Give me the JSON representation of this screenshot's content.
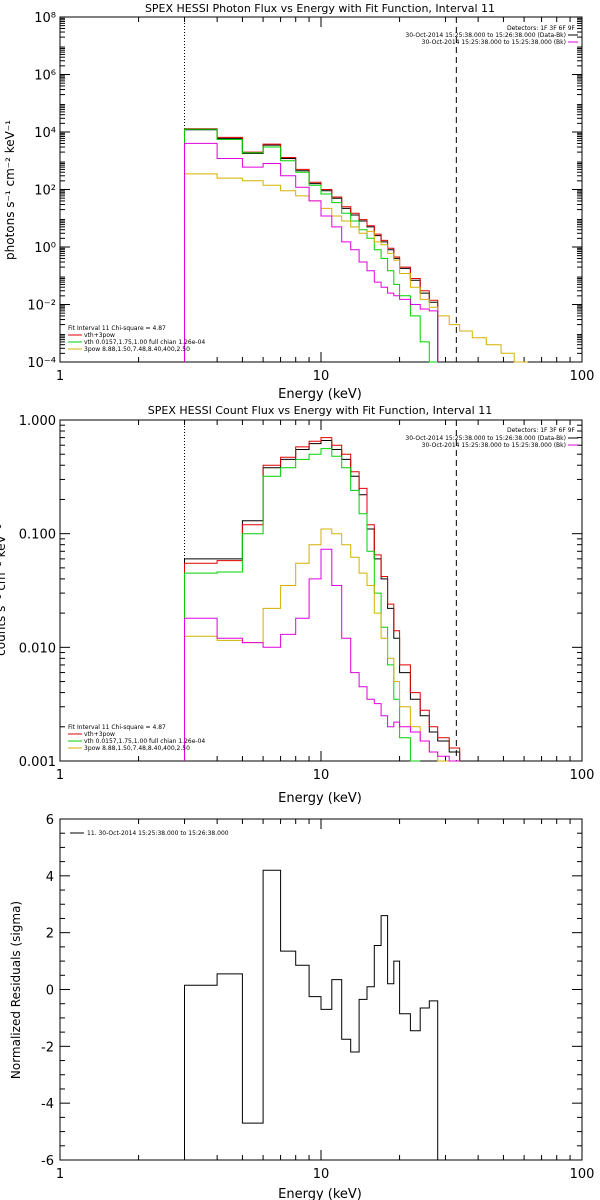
{
  "colors": {
    "data": "#000000",
    "total": "#e00000",
    "thermal": "#00d000",
    "power": "#d4b000",
    "bk": "#e000e0"
  },
  "chart_data": [
    {
      "type": "line",
      "title": "SPEX HESSI Photon Flux vs Energy with Fit Function, Interval 11",
      "xlabel": "Energy (keV)",
      "ylabel": "photons s⁻¹ cm⁻² keV⁻¹",
      "xscale": "log",
      "yscale": "log",
      "xlim": [
        1,
        100
      ],
      "ylim": [
        0.0001,
        100000000
      ],
      "x_ticks": [
        "1",
        "10",
        "100"
      ],
      "y_ticks": [
        "10⁻⁴",
        "10⁻²",
        "10⁰",
        "10²",
        "10⁴",
        "10⁶",
        "10⁸"
      ],
      "vlines": [
        {
          "x": 3,
          "style": "dotted"
        },
        {
          "x": 33,
          "style": "dashed"
        }
      ],
      "legend_top": {
        "detectors": "Detectors: 1F 3F 6F 9F",
        "rows": [
          {
            "label": "30-Oct-2014 15:25:38.000 to 15:26:38.000 (Data-Bk)",
            "color": "#000000"
          },
          {
            "label": "30-Oct-2014 15:25:38.000 to 15:25:38.000 (Bk)",
            "color": "#e000e0"
          }
        ]
      },
      "legend_bottom": [
        {
          "label": "Fit Interval 11    Chi-square = 4.87",
          "color": null
        },
        {
          "label": "vth+3pow",
          "color": "#e00000"
        },
        {
          "label": "vth 0.0157,1.75,1.00  full chian 1.26e-04",
          "color": "#00d000"
        },
        {
          "label": "3pow 8.88,1.50,7.48,8.40,400,2.50",
          "color": "#d4b000"
        }
      ],
      "edges": [
        3,
        4,
        5,
        6,
        7,
        8,
        9,
        10,
        11,
        12,
        13,
        14,
        15,
        16,
        17,
        18,
        19,
        20,
        22,
        24,
        26,
        28,
        31,
        34,
        38,
        43,
        49,
        55,
        62,
        70
      ],
      "series": [
        {
          "name": "data",
          "color": "#000000",
          "values": [
            12000,
            6000,
            1800,
            3500,
            1200,
            450,
            160,
            90,
            50,
            22,
            13,
            8,
            5,
            2.5,
            1.5,
            0.8,
            0.4,
            0.18,
            0.07,
            0.025,
            0.012
          ]
        },
        {
          "name": "vth+3pow",
          "color": "#e00000",
          "values": [
            13000,
            6500,
            2000,
            3800,
            1300,
            500,
            180,
            100,
            55,
            25,
            15,
            9,
            5.5,
            2.8,
            1.7,
            0.9,
            0.45,
            0.2,
            0.08,
            0.03,
            0.014
          ]
        },
        {
          "name": "vth",
          "color": "#00d000",
          "values": [
            12500,
            5500,
            1900,
            3000,
            1000,
            400,
            140,
            70,
            35,
            15,
            8,
            4,
            2,
            0.8,
            0.4,
            0.15,
            0.05,
            0.02,
            0.004,
            0.0005,
            0.0001
          ]
        },
        {
          "name": "3pow",
          "color": "#d4b000",
          "values": [
            350,
            250,
            200,
            140,
            90,
            60,
            40,
            22,
            12,
            8,
            5,
            3,
            3.5,
            1.5,
            1.2,
            0.6,
            0.35,
            0.12,
            0.04,
            0.015,
            0.008,
            0.004,
            0.002,
            0.0012,
            0.0007,
            0.0004,
            0.0002,
            0.0001
          ]
        },
        {
          "name": "Bk",
          "color": "#e000e0",
          "values": [
            4000,
            1200,
            600,
            800,
            300,
            120,
            40,
            12,
            5,
            1.5,
            0.8,
            0.3,
            0.15,
            0.06,
            0.04,
            0.025,
            0.02,
            0.015,
            0.01,
            0.007,
            0.006
          ]
        }
      ]
    },
    {
      "type": "line",
      "title": "SPEX HESSI Count Flux vs Energy with Fit Function, Interval 11",
      "xlabel": "Energy (keV)",
      "ylabel": "counts s⁻¹ cm⁻² keV⁻¹",
      "xscale": "log",
      "yscale": "log",
      "xlim": [
        1,
        100
      ],
      "ylim": [
        0.001,
        1
      ],
      "x_ticks": [
        "1",
        "10",
        "100"
      ],
      "y_ticks": [
        "0.001",
        "0.010",
        "0.100",
        "1.000"
      ],
      "vlines": [
        {
          "x": 3,
          "style": "dotted"
        },
        {
          "x": 33,
          "style": "dashed"
        }
      ],
      "legend_top": {
        "detectors": "Detectors: 1F 3F 6F 9F",
        "rows": [
          {
            "label": "30-Oct-2014 15:25:38.000 to 15:26:38.000 (Data-Bk)",
            "color": "#000000"
          },
          {
            "label": "30-Oct-2014 15:25:38.000 to 15:25:38.000 (Bk)",
            "color": "#e000e0"
          }
        ]
      },
      "legend_bottom": [
        {
          "label": "Fit Interval 11    Chi-square = 4.87",
          "color": null
        },
        {
          "label": "vth+3pow",
          "color": "#e00000"
        },
        {
          "label": "vth 0.0157,1.75,1.00  full chian 1.26e-04",
          "color": "#00d000"
        },
        {
          "label": "3pow 8.88,1.50,7.48,8.40,400,2.50",
          "color": "#d4b000"
        }
      ],
      "edges": [
        3,
        4,
        5,
        6,
        7,
        8,
        9,
        10,
        11,
        12,
        13,
        14,
        15,
        16,
        17,
        18,
        19,
        20,
        22,
        24,
        26,
        28,
        31,
        34
      ],
      "series": [
        {
          "name": "data",
          "color": "#000000",
          "values": [
            0.06,
            0.06,
            0.13,
            0.38,
            0.45,
            0.55,
            0.62,
            0.66,
            0.55,
            0.45,
            0.32,
            0.22,
            0.11,
            0.06,
            0.04,
            0.022,
            0.012,
            0.006,
            0.0035,
            0.0025,
            0.0018,
            0.0015,
            0.0012
          ]
        },
        {
          "name": "vth+3pow",
          "color": "#e00000",
          "values": [
            0.055,
            0.058,
            0.12,
            0.4,
            0.47,
            0.58,
            0.65,
            0.7,
            0.6,
            0.5,
            0.35,
            0.25,
            0.12,
            0.065,
            0.042,
            0.024,
            0.014,
            0.007,
            0.004,
            0.0028,
            0.002,
            0.0016,
            0.0013
          ]
        },
        {
          "name": "vth",
          "color": "#00d000",
          "values": [
            0.045,
            0.046,
            0.1,
            0.32,
            0.38,
            0.45,
            0.5,
            0.56,
            0.48,
            0.38,
            0.24,
            0.15,
            0.07,
            0.03,
            0.015,
            0.007,
            0.0035,
            0.0016,
            0.001
          ]
        },
        {
          "name": "3pow",
          "color": "#d4b000",
          "values": [
            0.0125,
            0.0115,
            0.011,
            0.022,
            0.035,
            0.055,
            0.08,
            0.11,
            0.1,
            0.08,
            0.062,
            0.045,
            0.035,
            0.02,
            0.012,
            0.008,
            0.005,
            0.003,
            0.002,
            0.0015,
            0.0012,
            0.001
          ]
        },
        {
          "name": "Bk",
          "color": "#e000e0",
          "values": [
            0.018,
            0.012,
            0.011,
            0.01,
            0.013,
            0.018,
            0.04,
            0.073,
            0.035,
            0.012,
            0.006,
            0.0045,
            0.0035,
            0.0032,
            0.0025,
            0.002,
            0.0022,
            0.002,
            0.0018,
            0.0015,
            0.0012,
            0.0011,
            0.001
          ]
        }
      ]
    },
    {
      "type": "line",
      "title": "",
      "xlabel": "Energy (keV)",
      "ylabel": "Normalized Residuals (sigma)",
      "xscale": "log",
      "xlim": [
        1,
        100
      ],
      "ylim": [
        -6,
        6
      ],
      "x_ticks": [
        "1",
        "10",
        "100"
      ],
      "y_ticks": [
        "-6",
        "-4",
        "-2",
        "0",
        "2",
        "4",
        "6"
      ],
      "legend": [
        {
          "label": "11. 30-Oct-2014 15:25:38.000 to 15:26:38.000",
          "color": "#000000"
        }
      ],
      "edges": [
        3,
        4,
        5,
        6,
        7,
        8,
        9,
        10,
        11,
        12,
        13,
        14,
        15,
        16,
        17,
        18,
        19,
        20,
        22,
        24,
        26,
        28,
        31,
        34
      ],
      "series": [
        {
          "name": "residuals",
          "color": "#000000",
          "values": [
            0.15,
            0.55,
            -4.7,
            4.2,
            1.35,
            0.85,
            -0.25,
            -0.7,
            0.35,
            -1.75,
            -2.2,
            -0.35,
            0.1,
            1.55,
            2.6,
            0.2,
            1.0,
            -0.85,
            -1.45,
            -0.65,
            -0.4,
            null,
            null
          ]
        }
      ]
    }
  ]
}
